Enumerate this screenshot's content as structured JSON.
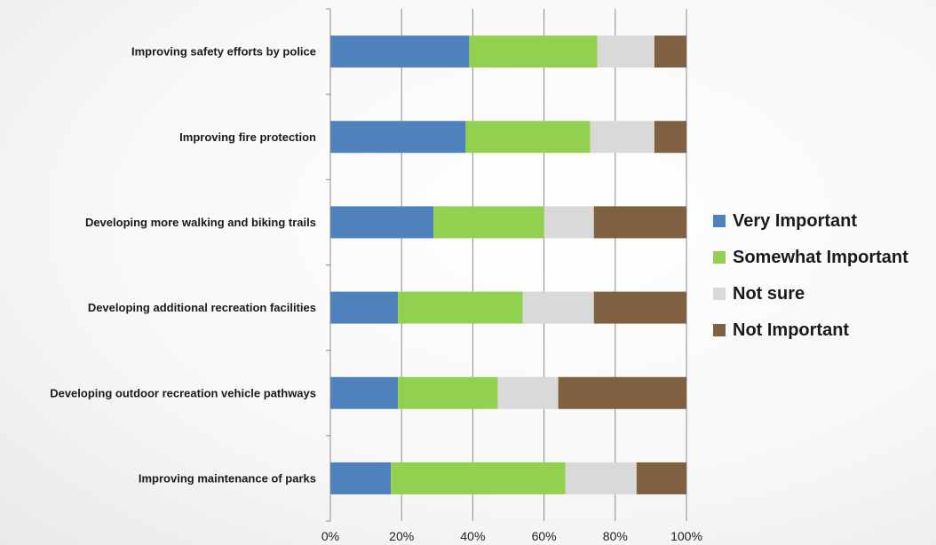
{
  "chart_data": {
    "type": "bar",
    "orientation": "horizontal",
    "stacked": true,
    "categories": [
      "Improving safety efforts by police",
      "Improving fire protection",
      "Developing more walking and biking trails",
      "Developing additional recreation facilities",
      "Developing outdoor recreation vehicle pathways",
      "Improving maintenance of parks"
    ],
    "series": [
      {
        "name": "Very Important",
        "color": "#4F81BD",
        "values": [
          39,
          38,
          29,
          19,
          19,
          17
        ]
      },
      {
        "name": "Somewhat Important",
        "color": "#92D050",
        "values": [
          36,
          35,
          31,
          35,
          28,
          49
        ]
      },
      {
        "name": "Not sure",
        "color": "#D9D9D9",
        "values": [
          16,
          18,
          14,
          20,
          17,
          20
        ]
      },
      {
        "name": "Not Important",
        "color": "#7F6040",
        "values": [
          9,
          9,
          26,
          26,
          36,
          14
        ]
      }
    ],
    "xticks": [
      "0%",
      "20%",
      "40%",
      "60%",
      "80%",
      "100%"
    ],
    "xlim": [
      0,
      100
    ],
    "grid": true,
    "legend_position": "right",
    "title": "",
    "xlabel": "",
    "ylabel": ""
  }
}
